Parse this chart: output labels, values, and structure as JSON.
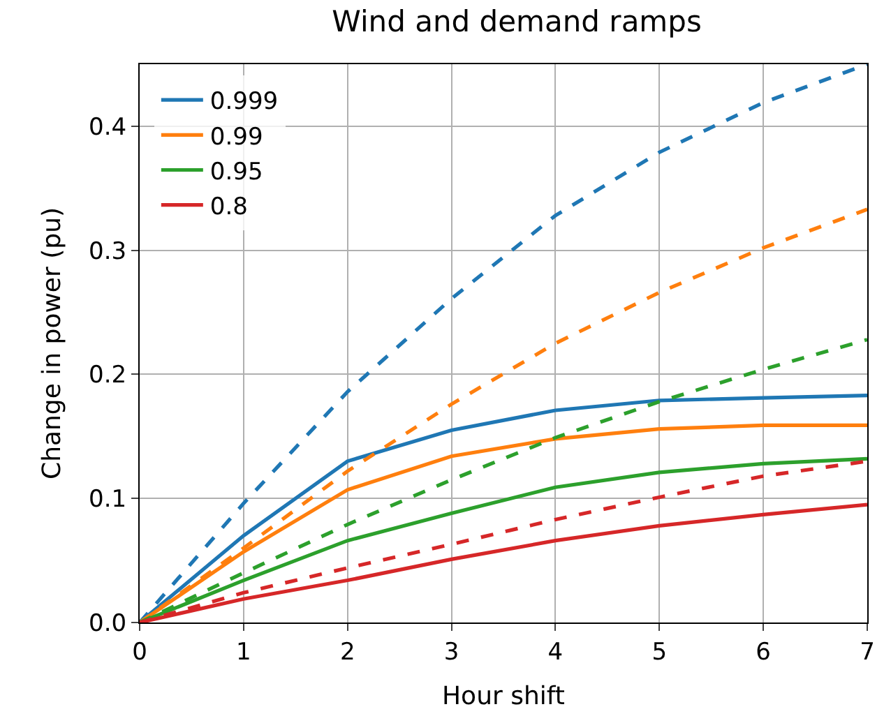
{
  "chart_data": {
    "type": "line",
    "title": "Wind and demand ramps",
    "xlabel": "Hour shift",
    "ylabel": "Change in power (pu)",
    "x": [
      0,
      1,
      2,
      3,
      4,
      5,
      6,
      7
    ],
    "xlim": [
      0,
      7
    ],
    "xticks": [
      0,
      1,
      2,
      3,
      4,
      5,
      6,
      7
    ],
    "ylim": [
      0,
      0.45
    ],
    "yticks": [
      {
        "value": 0,
        "label": "0.0"
      },
      0.1,
      0.2,
      0.3,
      0.4
    ],
    "grid": true,
    "legend": "top left",
    "marker": "none",
    "series": [
      {
        "name": "0.999",
        "color": "#1f77b4",
        "line_style": "solid",
        "values": [
          0,
          0.07,
          0.13,
          0.155,
          0.171,
          0.179,
          0.181,
          0.183
        ]
      },
      {
        "name": "0.99",
        "color": "#ff7f0e",
        "line_style": "solid",
        "values": [
          0,
          0.057,
          0.107,
          0.134,
          0.148,
          0.156,
          0.159,
          0.159
        ]
      },
      {
        "name": "0.95",
        "color": "#2ca02c",
        "line_style": "solid",
        "values": [
          0,
          0.034,
          0.066,
          0.088,
          0.109,
          0.121,
          0.128,
          0.132
        ]
      },
      {
        "name": "0.8",
        "color": "#d62728",
        "line_style": "solid",
        "values": [
          0,
          0.019,
          0.034,
          0.051,
          0.066,
          0.078,
          0.087,
          0.095
        ]
      },
      {
        "color": "#1f77b4",
        "line_style": "dashed",
        "values": [
          0,
          0.096,
          0.186,
          0.261,
          0.328,
          0.379,
          0.419,
          0.45
        ]
      },
      {
        "color": "#ff7f0e",
        "line_style": "dashed",
        "values": [
          0,
          0.06,
          0.122,
          0.176,
          0.225,
          0.266,
          0.302,
          0.333
        ]
      },
      {
        "color": "#2ca02c",
        "line_style": "dashed",
        "values": [
          0,
          0.04,
          0.079,
          0.115,
          0.149,
          0.178,
          0.204,
          0.228
        ]
      },
      {
        "color": "#d62728",
        "line_style": "dashed",
        "values": [
          0,
          0.024,
          0.044,
          0.063,
          0.083,
          0.101,
          0.118,
          0.13
        ]
      }
    ]
  }
}
